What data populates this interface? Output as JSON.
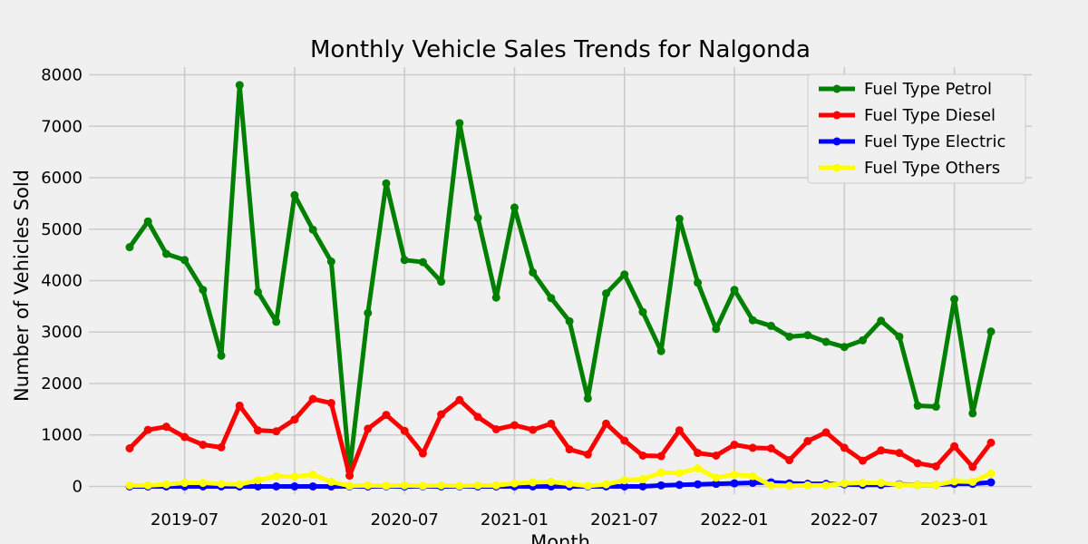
{
  "chart_data": {
    "type": "line",
    "title": "Monthly Vehicle Sales Trends for Nalgonda",
    "xlabel": "Month",
    "ylabel": "Number of Vehicles Sold",
    "x": [
      "2019-04",
      "2019-05",
      "2019-06",
      "2019-07",
      "2019-08",
      "2019-09",
      "2019-10",
      "2019-11",
      "2019-12",
      "2020-01",
      "2020-02",
      "2020-03",
      "2020-04",
      "2020-05",
      "2020-06",
      "2020-07",
      "2020-08",
      "2020-09",
      "2020-10",
      "2020-11",
      "2020-12",
      "2021-01",
      "2021-02",
      "2021-03",
      "2021-04",
      "2021-05",
      "2021-06",
      "2021-07",
      "2021-08",
      "2021-09",
      "2021-10",
      "2021-11",
      "2021-12",
      "2022-01",
      "2022-02",
      "2022-03",
      "2022-04",
      "2022-05",
      "2022-06",
      "2022-07",
      "2022-08",
      "2022-09",
      "2022-10",
      "2022-11",
      "2022-12",
      "2023-01",
      "2023-02",
      "2023-03"
    ],
    "x_ticks": [
      "2019-07",
      "2020-01",
      "2020-07",
      "2021-01",
      "2021-07",
      "2022-01",
      "2022-07",
      "2023-01"
    ],
    "ylim": [
      -150,
      8150
    ],
    "y_ticks": [
      0,
      1000,
      2000,
      3000,
      4000,
      5000,
      6000,
      7000,
      8000
    ],
    "grid": true,
    "legend_position": "top-right",
    "series": [
      {
        "name": "Fuel Type Petrol",
        "color": "#008000",
        "values": [
          4650,
          5150,
          4520,
          4400,
          3820,
          2540,
          7800,
          3780,
          3200,
          5660,
          4990,
          4370,
          310,
          3370,
          5890,
          4400,
          4360,
          3980,
          7060,
          5220,
          3670,
          5420,
          4160,
          3660,
          3210,
          1710,
          3750,
          4120,
          3390,
          2630,
          5200,
          3960,
          3060,
          3820,
          3230,
          3120,
          2910,
          2940,
          2810,
          2710,
          2840,
          3220,
          2910,
          1570,
          1550,
          3640,
          1420,
          3010
        ]
      },
      {
        "name": "Fuel Type Diesel",
        "color": "#ff0000",
        "values": [
          740,
          1100,
          1160,
          960,
          810,
          760,
          1570,
          1090,
          1070,
          1300,
          1700,
          1620,
          210,
          1120,
          1390,
          1080,
          640,
          1400,
          1680,
          1350,
          1110,
          1190,
          1100,
          1220,
          720,
          620,
          1220,
          890,
          600,
          590,
          1090,
          650,
          600,
          810,
          750,
          740,
          510,
          880,
          1050,
          750,
          500,
          700,
          650,
          450,
          390,
          780,
          380,
          850
        ]
      },
      {
        "name": "Fuel Type Electric",
        "color": "#0000ff",
        "values": [
          0,
          0,
          0,
          0,
          0,
          0,
          0,
          0,
          0,
          0,
          0,
          0,
          0,
          0,
          0,
          0,
          0,
          0,
          0,
          0,
          0,
          0,
          0,
          0,
          0,
          0,
          0,
          0,
          0,
          20,
          30,
          40,
          50,
          60,
          70,
          80,
          60,
          50,
          50,
          40,
          30,
          30,
          40,
          30,
          30,
          50,
          50,
          80
        ]
      },
      {
        "name": "Fuel Type Others",
        "color": "#ffff00",
        "values": [
          20,
          20,
          40,
          70,
          70,
          50,
          40,
          120,
          200,
          190,
          230,
          90,
          10,
          20,
          10,
          20,
          10,
          20,
          10,
          20,
          20,
          60,
          80,
          90,
          50,
          10,
          40,
          120,
          140,
          270,
          260,
          350,
          170,
          230,
          200,
          20,
          10,
          20,
          20,
          60,
          70,
          70,
          30,
          30,
          30,
          100,
          90,
          250
        ]
      }
    ]
  }
}
